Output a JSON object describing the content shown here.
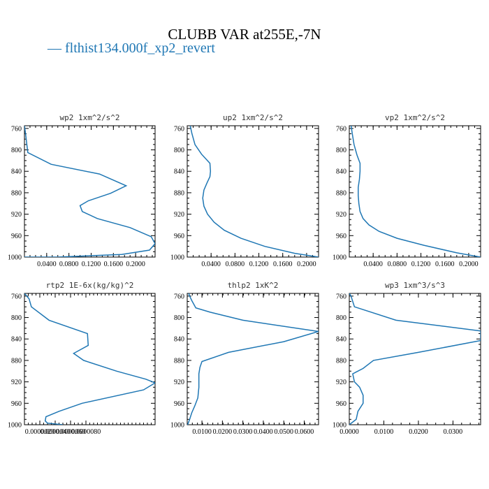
{
  "title": "CLUBB VAR at255E,-7N",
  "legend": {
    "marker": "—",
    "label": "flthist134.000f_xp2_revert",
    "color": "#1f77b4"
  },
  "chart_data": [
    {
      "type": "line",
      "title": "wp2   1xm^2/s^2",
      "ylim": [
        1000,
        755
      ],
      "yticks": [
        760,
        800,
        840,
        880,
        920,
        960,
        1000
      ],
      "xlim": [
        0.0,
        0.235
      ],
      "xticks": [
        0.04,
        0.08,
        0.12,
        0.16,
        0.2
      ],
      "xticklabels": [
        "0.0400",
        "0.0800",
        "0.1200",
        "0.1600",
        "0.2000"
      ],
      "series": [
        {
          "x": [
            0.0,
            0.002,
            0.006,
            0.048,
            0.135,
            0.183,
            0.155,
            0.115,
            0.1,
            0.104,
            0.131,
            0.19,
            0.228,
            0.235,
            0.225,
            0.175,
            0.06,
            0.0
          ],
          "y": [
            755,
            770,
            805,
            827,
            845,
            867,
            881,
            895,
            904,
            915,
            928,
            945,
            962,
            975,
            987,
            995,
            1000,
            1000
          ]
        }
      ]
    },
    {
      "type": "line",
      "title": "up2   1xm^2/s^2",
      "ylim": [
        1000,
        755
      ],
      "yticks": [
        760,
        800,
        840,
        880,
        920,
        960,
        1000
      ],
      "xlim": [
        0.0,
        0.22
      ],
      "xticks": [
        0.04,
        0.08,
        0.12,
        0.16,
        0.2
      ],
      "xticklabels": [
        "0.0400",
        "0.0800",
        "0.1200",
        "0.1600",
        "0.2000"
      ],
      "series": [
        {
          "x": [
            0.005,
            0.008,
            0.013,
            0.024,
            0.038,
            0.039,
            0.038,
            0.033,
            0.028,
            0.026,
            0.028,
            0.034,
            0.045,
            0.062,
            0.09,
            0.13,
            0.18,
            0.22
          ],
          "y": [
            755,
            770,
            790,
            808,
            825,
            840,
            850,
            862,
            875,
            890,
            905,
            920,
            935,
            950,
            965,
            980,
            993,
            1000
          ]
        }
      ]
    },
    {
      "type": "line",
      "title": "vp2   1xm^2/s^2",
      "ylim": [
        1000,
        755
      ],
      "yticks": [
        760,
        800,
        840,
        880,
        920,
        960,
        1000
      ],
      "xlim": [
        0.0,
        0.22
      ],
      "xticks": [
        0.04,
        0.08,
        0.12,
        0.16,
        0.2
      ],
      "xticklabels": [
        "0.0400",
        "0.0800",
        "0.1200",
        "0.1600",
        "0.2000"
      ],
      "series": [
        {
          "x": [
            0.003,
            0.005,
            0.008,
            0.013,
            0.018,
            0.018,
            0.017,
            0.015,
            0.015,
            0.016,
            0.018,
            0.023,
            0.033,
            0.05,
            0.08,
            0.125,
            0.18,
            0.22
          ],
          "y": [
            755,
            770,
            790,
            810,
            825,
            840,
            855,
            870,
            885,
            900,
            915,
            928,
            940,
            952,
            965,
            978,
            992,
            1000
          ]
        }
      ]
    },
    {
      "type": "line",
      "title": "rtp2   1E-6x(kg/kg)^2",
      "ylim": [
        1000,
        755
      ],
      "yticks": [
        760,
        800,
        840,
        880,
        920,
        960,
        1000
      ],
      "xlim": [
        0.0,
        1.7e-05
      ],
      "xticks": [
        2e-06,
        4e-06,
        6e-06,
        8e-06
      ],
      "xticklabels": [
        "0.0000020",
        "0.0000040",
        "0.0000060",
        "0.0000080"
      ],
      "series": [
        {
          "x": [
            0.0,
            6e-07,
            9e-07,
            3.2e-06,
            8.2e-06,
            8.3e-06,
            6.4e-06,
            7.7e-06,
            1.2e-05,
            1.58e-05,
            1.7e-05,
            1.55e-05,
            7.5e-06,
            4.5e-06,
            2.8e-06,
            2.7e-06,
            3e-06,
            5e-06
          ],
          "y": [
            755,
            765,
            780,
            805,
            830,
            852,
            867,
            880,
            900,
            915,
            922,
            935,
            960,
            975,
            985,
            993,
            997,
            1000
          ]
        }
      ]
    },
    {
      "type": "line",
      "title": "thlp2   1xK^2",
      "ylim": [
        1000,
        755
      ],
      "yticks": [
        760,
        800,
        840,
        880,
        920,
        960,
        1000
      ],
      "xlim": [
        0.0028,
        0.067
      ],
      "xticks": [
        0.01,
        0.02,
        0.03,
        0.04,
        0.05,
        0.06
      ],
      "xticklabels": [
        "0.0100",
        "0.0200",
        "0.0300",
        "0.0400",
        "0.0500",
        "0.0600"
      ],
      "series": [
        {
          "x": [
            0.0035,
            0.004,
            0.005,
            0.007,
            0.014,
            0.03,
            0.067,
            0.05,
            0.023,
            0.01,
            0.009,
            0.0085,
            0.0085,
            0.008,
            0.0065,
            0.005,
            0.004,
            0.003
          ],
          "y": [
            755,
            760,
            768,
            782,
            790,
            805,
            826,
            845,
            865,
            882,
            893,
            905,
            930,
            950,
            965,
            978,
            990,
            1000
          ]
        }
      ]
    },
    {
      "type": "line",
      "title": "wp3   1xm^3/s^3",
      "ylim": [
        1000,
        755
      ],
      "yticks": [
        760,
        800,
        840,
        880,
        920,
        960,
        1000
      ],
      "xlim": [
        0.0,
        0.038
      ],
      "xticks": [
        0.0,
        0.01,
        0.02,
        0.03
      ],
      "xticklabels": [
        "0.0000",
        "0.0100",
        "0.0200",
        "0.0300"
      ],
      "series": [
        {
          "x": [
            0.0,
            0.0005,
            0.001,
            0.0015,
            0.0135,
            0.038,
            0.038,
            0.02,
            0.007,
            0.004,
            0.001,
            0.0015,
            0.003,
            0.004,
            0.004,
            0.0025,
            0.002,
            0.0
          ],
          "y": [
            755,
            760,
            770,
            780,
            805,
            825,
            843,
            865,
            880,
            895,
            905,
            920,
            930,
            945,
            960,
            975,
            990,
            1000
          ]
        }
      ]
    }
  ]
}
